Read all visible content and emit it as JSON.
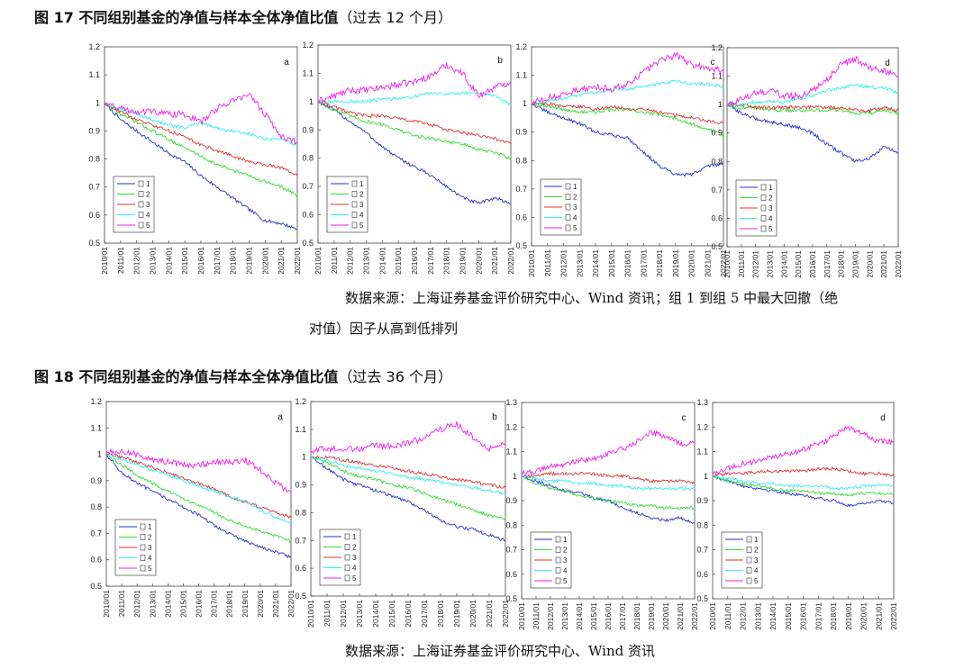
{
  "figures": [
    {
      "title_main": "图 17 不同组别基金的净值与样本全体净值比值",
      "title_paren": "（过去 12 个月）",
      "source_line1": "数据来源：上海证券基金评价研究中心、Wind 资讯；组 1 到组 5 中最大回撤（绝",
      "source_line2": "对值）因子从高到低排列"
    },
    {
      "title_main": "图 18 不同组别基金的净值与样本全体净值比值",
      "title_paren": "（过去 36 个月）",
      "source_line1": "数据来源：上海证券基金评价研究中心、Wind 资讯"
    }
  ],
  "colors": {
    "1": "#2233cc",
    "2": "#33dd33",
    "3": "#dd3333",
    "4": "#33eeee",
    "5": "#ee22ee"
  },
  "chart_data": [
    {
      "figure": "图 17",
      "panel": "a",
      "type": "line",
      "xlabel": "",
      "ylabel": "",
      "ylim": [
        0.5,
        1.2
      ],
      "yticks": [
        "0.5",
        "0.6",
        "0.7",
        "0.8",
        "0.9",
        "1",
        "1.1",
        "1.2"
      ],
      "categories": [
        "2010/01",
        "2011/01",
        "2012/01",
        "2013/01",
        "2014/01",
        "2015/01",
        "2016/01",
        "2017/01",
        "2018/01",
        "2019/01",
        "2020/01",
        "2021/01",
        "2022/01"
      ],
      "legend": [
        "1",
        "2",
        "3",
        "4",
        "5"
      ],
      "legend_pos": "bottom-left",
      "series": [
        {
          "name": "1",
          "values": [
            1.0,
            0.94,
            0.9,
            0.86,
            0.82,
            0.79,
            0.74,
            0.7,
            0.66,
            0.62,
            0.58,
            0.57,
            0.55
          ]
        },
        {
          "name": "2",
          "values": [
            1.0,
            0.96,
            0.93,
            0.9,
            0.87,
            0.84,
            0.81,
            0.78,
            0.76,
            0.74,
            0.72,
            0.7,
            0.67
          ]
        },
        {
          "name": "3",
          "values": [
            1.0,
            0.97,
            0.94,
            0.92,
            0.9,
            0.88,
            0.85,
            0.83,
            0.81,
            0.79,
            0.78,
            0.77,
            0.74
          ]
        },
        {
          "name": "4",
          "values": [
            1.0,
            0.98,
            0.96,
            0.94,
            0.92,
            0.91,
            0.93,
            0.91,
            0.9,
            0.89,
            0.87,
            0.87,
            0.85
          ]
        },
        {
          "name": "5",
          "values": [
            1.0,
            0.98,
            0.97,
            0.97,
            0.96,
            0.96,
            0.93,
            0.98,
            1.01,
            1.03,
            0.96,
            0.88,
            0.86
          ]
        }
      ]
    },
    {
      "figure": "图 17",
      "panel": "b",
      "type": "line",
      "xlabel": "",
      "ylabel": "",
      "ylim": [
        0.5,
        1.2
      ],
      "yticks": [
        "0.5",
        "0.6",
        "0.7",
        "0.8",
        "0.9",
        "1",
        "1.1",
        "1.2"
      ],
      "categories": [
        "2010/01",
        "2011/01",
        "2012/01",
        "2013/01",
        "2014/01",
        "2015/01",
        "2016/01",
        "2017/01",
        "2018/01",
        "2019/01",
        "2020/01",
        "2021/01",
        "2022/01"
      ],
      "legend": [
        "1",
        "2",
        "3",
        "4",
        "5"
      ],
      "legend_pos": "bottom-left",
      "series": [
        {
          "name": "1",
          "values": [
            1.0,
            0.97,
            0.93,
            0.89,
            0.84,
            0.8,
            0.77,
            0.74,
            0.7,
            0.66,
            0.64,
            0.66,
            0.64
          ]
        },
        {
          "name": "2",
          "values": [
            1.0,
            0.97,
            0.95,
            0.93,
            0.92,
            0.9,
            0.88,
            0.87,
            0.86,
            0.85,
            0.83,
            0.82,
            0.8
          ]
        },
        {
          "name": "3",
          "values": [
            1.0,
            0.98,
            0.96,
            0.95,
            0.95,
            0.94,
            0.93,
            0.92,
            0.9,
            0.89,
            0.88,
            0.87,
            0.85
          ]
        },
        {
          "name": "4",
          "values": [
            1.0,
            1.0,
            1.0,
            1.0,
            1.01,
            1.01,
            1.02,
            1.03,
            1.03,
            1.03,
            1.03,
            1.02,
            0.99
          ]
        },
        {
          "name": "5",
          "values": [
            1.0,
            1.02,
            1.04,
            1.04,
            1.05,
            1.06,
            1.07,
            1.09,
            1.13,
            1.1,
            1.02,
            1.05,
            1.07
          ]
        }
      ]
    },
    {
      "figure": "图 17",
      "panel": "c",
      "type": "line",
      "xlabel": "",
      "ylabel": "",
      "ylim": [
        0.5,
        1.2
      ],
      "yticks": [
        "0.5",
        "0.6",
        "0.7",
        "0.8",
        "0.9",
        "1",
        "1.1",
        "1.2"
      ],
      "categories": [
        "2010/01",
        "2011/01",
        "2012/01",
        "2013/01",
        "2014/01",
        "2015/01",
        "2016/01",
        "2017/01",
        "2018/01",
        "2019/01",
        "2020/01",
        "2021/01",
        "2022/01"
      ],
      "legend": [
        "1",
        "2",
        "3",
        "4",
        "5"
      ],
      "legend_pos": "bottom-left",
      "series": [
        {
          "name": "1",
          "values": [
            1.0,
            0.97,
            0.95,
            0.93,
            0.9,
            0.89,
            0.88,
            0.83,
            0.78,
            0.75,
            0.75,
            0.78,
            0.79
          ]
        },
        {
          "name": "2",
          "values": [
            1.0,
            0.99,
            0.98,
            0.97,
            0.97,
            0.98,
            0.98,
            0.97,
            0.96,
            0.95,
            0.93,
            0.91,
            0.89
          ]
        },
        {
          "name": "3",
          "values": [
            1.0,
            1.0,
            0.99,
            0.99,
            0.98,
            0.99,
            0.98,
            0.98,
            0.97,
            0.96,
            0.95,
            0.94,
            0.93
          ]
        },
        {
          "name": "4",
          "values": [
            1.0,
            1.01,
            1.02,
            1.03,
            1.04,
            1.05,
            1.05,
            1.06,
            1.07,
            1.08,
            1.07,
            1.07,
            1.06
          ]
        },
        {
          "name": "5",
          "values": [
            1.0,
            1.02,
            1.03,
            1.05,
            1.06,
            1.05,
            1.07,
            1.11,
            1.15,
            1.17,
            1.14,
            1.12,
            1.12
          ]
        }
      ]
    },
    {
      "figure": "图 17",
      "panel": "d",
      "type": "line",
      "xlabel": "",
      "ylabel": "",
      "ylim": [
        0.5,
        1.2
      ],
      "yticks": [
        "0.5",
        "0.6",
        "0.7",
        "0.8",
        "0.9",
        "1",
        "1.1",
        "1.2"
      ],
      "categories": [
        "2010/01",
        "2011/01",
        "2012/01",
        "2013/01",
        "2014/01",
        "2015/01",
        "2016/01",
        "2017/01",
        "2018/01",
        "2019/01",
        "2020/01",
        "2021/01",
        "2022/01"
      ],
      "legend": [
        "1",
        "2",
        "3",
        "4",
        "5"
      ],
      "legend_pos": "bottom-left",
      "series": [
        {
          "name": "1",
          "values": [
            1.0,
            0.97,
            0.95,
            0.94,
            0.93,
            0.92,
            0.9,
            0.86,
            0.83,
            0.8,
            0.81,
            0.85,
            0.83
          ]
        },
        {
          "name": "2",
          "values": [
            1.0,
            0.99,
            0.99,
            0.98,
            0.98,
            0.98,
            0.98,
            0.98,
            0.98,
            0.97,
            0.97,
            0.98,
            0.97
          ]
        },
        {
          "name": "3",
          "values": [
            1.0,
            1.0,
            0.99,
            0.99,
            0.99,
            0.99,
            0.99,
            0.99,
            0.99,
            0.98,
            0.98,
            0.99,
            0.98
          ]
        },
        {
          "name": "4",
          "values": [
            1.0,
            1.0,
            1.01,
            1.01,
            1.01,
            1.02,
            1.03,
            1.05,
            1.06,
            1.07,
            1.06,
            1.06,
            1.04
          ]
        },
        {
          "name": "5",
          "values": [
            1.0,
            1.02,
            1.04,
            1.05,
            1.03,
            1.03,
            1.05,
            1.09,
            1.14,
            1.16,
            1.13,
            1.12,
            1.1
          ]
        }
      ]
    },
    {
      "figure": "图 18",
      "panel": "a",
      "type": "line",
      "xlabel": "",
      "ylabel": "",
      "ylim": [
        0.5,
        1.2
      ],
      "yticks": [
        "0.5",
        "0.6",
        "0.7",
        "0.8",
        "0.9",
        "1",
        "1.1",
        "1.2"
      ],
      "categories": [
        "2010/01",
        "2011/01",
        "2012/01",
        "2013/01",
        "2014/01",
        "2015/01",
        "2016/01",
        "2017/01",
        "2018/01",
        "2019/01",
        "2020/01",
        "2021/01",
        "2022/01"
      ],
      "legend": [
        "1",
        "2",
        "3",
        "4",
        "5"
      ],
      "legend_pos": "bottom-left",
      "series": [
        {
          "name": "1",
          "values": [
            1.0,
            0.93,
            0.89,
            0.86,
            0.83,
            0.8,
            0.77,
            0.73,
            0.7,
            0.67,
            0.65,
            0.63,
            0.61
          ]
        },
        {
          "name": "2",
          "values": [
            1.0,
            0.96,
            0.92,
            0.89,
            0.86,
            0.83,
            0.81,
            0.78,
            0.75,
            0.73,
            0.71,
            0.69,
            0.67
          ]
        },
        {
          "name": "3",
          "values": [
            1.0,
            0.99,
            0.97,
            0.95,
            0.93,
            0.91,
            0.89,
            0.87,
            0.84,
            0.82,
            0.8,
            0.78,
            0.76
          ]
        },
        {
          "name": "4",
          "values": [
            1.0,
            0.98,
            0.96,
            0.94,
            0.92,
            0.9,
            0.88,
            0.86,
            0.84,
            0.82,
            0.79,
            0.76,
            0.74
          ]
        },
        {
          "name": "5",
          "values": [
            1.01,
            1.01,
            1.0,
            0.98,
            0.97,
            0.96,
            0.96,
            0.97,
            0.97,
            0.98,
            0.94,
            0.89,
            0.86
          ]
        }
      ]
    },
    {
      "figure": "图 18",
      "panel": "b",
      "type": "line",
      "xlabel": "",
      "ylabel": "",
      "ylim": [
        0.5,
        1.2
      ],
      "yticks": [
        "0.5",
        "0.6",
        "0.7",
        "0.8",
        "0.9",
        "1",
        "1.1",
        "1.2"
      ],
      "categories": [
        "2010/01",
        "2011/01",
        "2012/01",
        "2013/01",
        "2014/01",
        "2015/01",
        "2016/01",
        "2017/01",
        "2018/01",
        "2019/01",
        "2020/01",
        "2021/01",
        "2022/01"
      ],
      "legend": [
        "1",
        "2",
        "3",
        "4",
        "5"
      ],
      "legend_pos": "bottom-left",
      "series": [
        {
          "name": "1",
          "values": [
            1.0,
            0.96,
            0.92,
            0.9,
            0.88,
            0.86,
            0.84,
            0.81,
            0.77,
            0.75,
            0.74,
            0.72,
            0.7
          ]
        },
        {
          "name": "2",
          "values": [
            1.0,
            0.98,
            0.95,
            0.93,
            0.92,
            0.9,
            0.89,
            0.87,
            0.85,
            0.83,
            0.81,
            0.79,
            0.78
          ]
        },
        {
          "name": "3",
          "values": [
            1.0,
            1.0,
            0.99,
            0.98,
            0.97,
            0.96,
            0.95,
            0.94,
            0.93,
            0.92,
            0.91,
            0.9,
            0.89
          ]
        },
        {
          "name": "4",
          "values": [
            1.0,
            0.99,
            0.97,
            0.96,
            0.95,
            0.94,
            0.93,
            0.92,
            0.91,
            0.9,
            0.89,
            0.88,
            0.87
          ]
        },
        {
          "name": "5",
          "values": [
            1.02,
            1.03,
            1.03,
            1.03,
            1.04,
            1.04,
            1.05,
            1.07,
            1.1,
            1.12,
            1.07,
            1.03,
            1.05
          ]
        }
      ]
    },
    {
      "figure": "图 18",
      "panel": "c",
      "type": "line",
      "xlabel": "",
      "ylabel": "",
      "ylim": [
        0.5,
        1.3
      ],
      "yticks": [
        "0.5",
        "0.6",
        "0.7",
        "0.8",
        "0.9",
        "1",
        "1.1",
        "1.2",
        "1.3"
      ],
      "categories": [
        "2010/01",
        "2011/01",
        "2012/01",
        "2013/01",
        "2014/01",
        "2015/01",
        "2016/01",
        "2017/01",
        "2018/01",
        "2019/01",
        "2020/01",
        "2021/01",
        "2022/01"
      ],
      "legend": [
        "1",
        "2",
        "3",
        "4",
        "5"
      ],
      "legend_pos": "bottom-left",
      "series": [
        {
          "name": "1",
          "values": [
            1.0,
            0.98,
            0.96,
            0.94,
            0.93,
            0.91,
            0.9,
            0.87,
            0.85,
            0.83,
            0.82,
            0.83,
            0.81
          ]
        },
        {
          "name": "2",
          "values": [
            1.0,
            0.97,
            0.95,
            0.94,
            0.92,
            0.91,
            0.9,
            0.89,
            0.88,
            0.88,
            0.87,
            0.87,
            0.87
          ]
        },
        {
          "name": "3",
          "values": [
            1.0,
            1.0,
            1.01,
            1.01,
            1.01,
            1.01,
            1.0,
            1.0,
            0.99,
            0.98,
            0.98,
            0.98,
            0.97
          ]
        },
        {
          "name": "4",
          "values": [
            1.0,
            0.99,
            0.98,
            0.98,
            0.97,
            0.97,
            0.96,
            0.96,
            0.95,
            0.95,
            0.95,
            0.95,
            0.95
          ]
        },
        {
          "name": "5",
          "values": [
            1.01,
            1.02,
            1.04,
            1.05,
            1.06,
            1.07,
            1.09,
            1.11,
            1.14,
            1.18,
            1.16,
            1.13,
            1.14
          ]
        }
      ]
    },
    {
      "figure": "图 18",
      "panel": "d",
      "type": "line",
      "xlabel": "",
      "ylabel": "",
      "ylim": [
        0.5,
        1.3
      ],
      "yticks": [
        "0.5",
        "0.6",
        "0.7",
        "0.8",
        "0.9",
        "1",
        "1.1",
        "1.2",
        "1.3"
      ],
      "categories": [
        "2010/01",
        "2011/01",
        "2012/01",
        "2013/01",
        "2014/01",
        "2015/01",
        "2016/01",
        "2017/01",
        "2018/01",
        "2019/01",
        "2020/01",
        "2021/01",
        "2022/01"
      ],
      "legend": [
        "1",
        "2",
        "3",
        "4",
        "5"
      ],
      "legend_pos": "bottom-left",
      "series": [
        {
          "name": "1",
          "values": [
            1.0,
            0.98,
            0.96,
            0.95,
            0.94,
            0.93,
            0.92,
            0.91,
            0.9,
            0.88,
            0.89,
            0.9,
            0.89
          ]
        },
        {
          "name": "2",
          "values": [
            1.0,
            0.98,
            0.97,
            0.96,
            0.95,
            0.94,
            0.94,
            0.93,
            0.93,
            0.92,
            0.93,
            0.93,
            0.93
          ]
        },
        {
          "name": "3",
          "values": [
            1.0,
            1.01,
            1.01,
            1.02,
            1.02,
            1.02,
            1.02,
            1.03,
            1.03,
            1.02,
            1.01,
            1.01,
            1.0
          ]
        },
        {
          "name": "4",
          "values": [
            1.0,
            0.99,
            0.98,
            0.97,
            0.97,
            0.96,
            0.96,
            0.96,
            0.95,
            0.95,
            0.96,
            0.96,
            0.96
          ]
        },
        {
          "name": "5",
          "values": [
            1.01,
            1.03,
            1.05,
            1.06,
            1.08,
            1.09,
            1.11,
            1.13,
            1.16,
            1.2,
            1.17,
            1.14,
            1.14
          ]
        }
      ]
    }
  ]
}
